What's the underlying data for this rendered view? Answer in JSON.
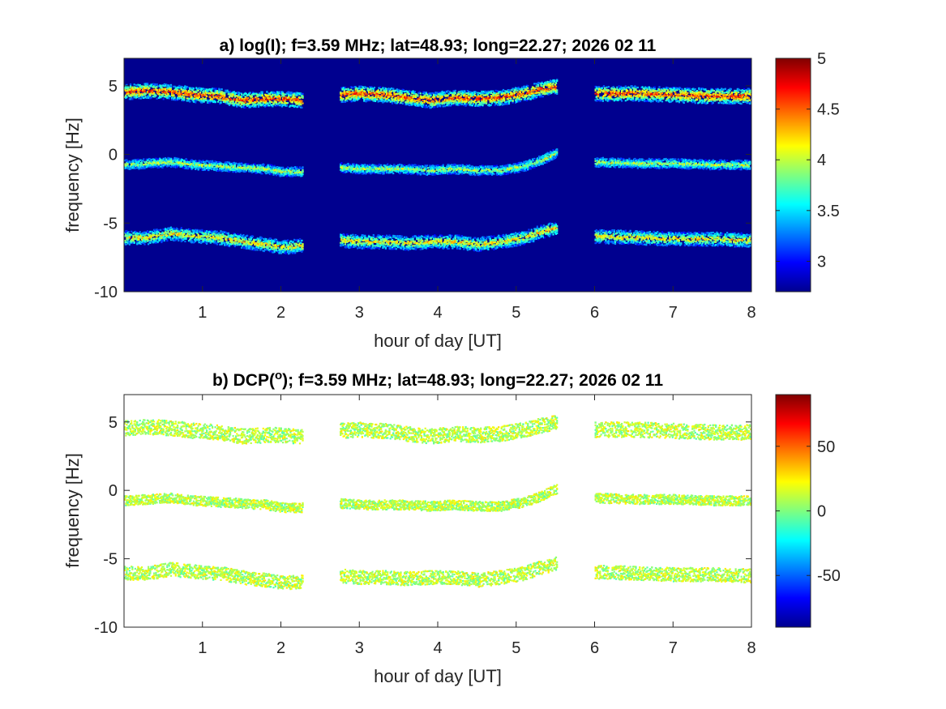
{
  "chart_data": [
    {
      "type": "heatmap",
      "title": {
        "prefix": "a) log(I); f=",
        "freq": "3.59 MHz",
        "lat_label": "lat=48.93",
        "long_label": "long=22.27",
        "date": "2026 02 11"
      },
      "xlabel": "hour of day [UT]",
      "ylabel": "frequency [Hz]",
      "xlim": [
        0,
        8
      ],
      "ylim": [
        -10,
        7
      ],
      "xticks": [
        1,
        2,
        3,
        4,
        5,
        6,
        7,
        8
      ],
      "yticks": [
        -10,
        -5,
        0,
        5
      ],
      "colorbar": {
        "range": [
          2.7,
          5
        ],
        "ticks": [
          3,
          3.5,
          4,
          4.5,
          5
        ],
        "colormap": "jet"
      },
      "background_color": "#00008f",
      "data_segments_hours": [
        [
          0,
          2.27
        ],
        [
          2.75,
          5.52
        ],
        [
          6.0,
          8.0
        ]
      ],
      "traces": [
        {
          "name": "upper",
          "x": [
            0,
            0.3,
            0.6,
            0.9,
            1.2,
            1.5,
            1.8,
            2.0,
            2.27,
            2.75,
            3.0,
            3.3,
            3.6,
            3.9,
            4.2,
            4.5,
            4.8,
            5.1,
            5.3,
            5.52,
            6.0,
            6.5,
            7.0,
            7.5,
            8.0
          ],
          "y": [
            4.6,
            4.7,
            4.6,
            4.4,
            4.3,
            4.0,
            4.1,
            4.1,
            4.0,
            4.4,
            4.5,
            4.4,
            4.2,
            4.0,
            4.2,
            4.1,
            4.2,
            4.5,
            4.8,
            5.0,
            4.5,
            4.5,
            4.4,
            4.3,
            4.3
          ],
          "width_hz": 0.55,
          "intensity": 4.6
        },
        {
          "name": "middle",
          "x": [
            0,
            0.3,
            0.6,
            0.9,
            1.2,
            1.5,
            1.8,
            2.0,
            2.27,
            2.75,
            3.0,
            3.3,
            3.6,
            3.9,
            4.2,
            4.5,
            4.8,
            5.1,
            5.3,
            5.52,
            6.0,
            6.5,
            7.0,
            7.5,
            8.0
          ],
          "y": [
            -0.7,
            -0.6,
            -0.5,
            -0.7,
            -0.8,
            -0.9,
            -1.0,
            -1.2,
            -1.2,
            -0.9,
            -1.0,
            -1.0,
            -1.0,
            -1.1,
            -1.0,
            -1.1,
            -1.1,
            -0.8,
            -0.4,
            0.2,
            -0.5,
            -0.6,
            -0.6,
            -0.7,
            -0.7
          ],
          "width_hz": 0.35,
          "intensity": 4.0
        },
        {
          "name": "lower",
          "x": [
            0,
            0.3,
            0.6,
            0.9,
            1.2,
            1.5,
            1.8,
            2.0,
            2.27,
            2.75,
            3.0,
            3.3,
            3.6,
            3.9,
            4.2,
            4.5,
            4.8,
            5.1,
            5.3,
            5.52,
            6.0,
            6.5,
            7.0,
            7.5,
            8.0
          ],
          "y": [
            -6.0,
            -6.0,
            -5.7,
            -5.9,
            -6.0,
            -6.3,
            -6.5,
            -6.7,
            -6.6,
            -6.2,
            -6.3,
            -6.3,
            -6.4,
            -6.3,
            -6.3,
            -6.5,
            -6.3,
            -6.0,
            -5.6,
            -5.3,
            -5.9,
            -6.0,
            -6.1,
            -6.1,
            -6.2
          ],
          "width_hz": 0.5,
          "intensity": 4.2
        }
      ]
    },
    {
      "type": "heatmap",
      "title": {
        "prefix": "b) DCP(",
        "sup": "o",
        "suffix": "); f=",
        "freq": "3.59 MHz",
        "lat_label": "lat=48.93",
        "long_label": "long=22.27",
        "date": "2026 02 11"
      },
      "xlabel": "hour of day [UT]",
      "ylabel": "frequency [Hz]",
      "xlim": [
        0,
        8
      ],
      "ylim": [
        -10,
        7
      ],
      "xticks": [
        1,
        2,
        3,
        4,
        5,
        6,
        7,
        8
      ],
      "yticks": [
        -10,
        -5,
        0,
        5
      ],
      "colorbar": {
        "range": [
          -90,
          90
        ],
        "ticks": [
          -50,
          0,
          50
        ],
        "colormap": "jet"
      },
      "background_color": "#ffffff",
      "data_segments_hours": [
        [
          0,
          2.27
        ],
        [
          2.75,
          5.52
        ],
        [
          6.0,
          8.0
        ]
      ],
      "trace_value_deg": 10,
      "traces_same_as": "a"
    }
  ]
}
